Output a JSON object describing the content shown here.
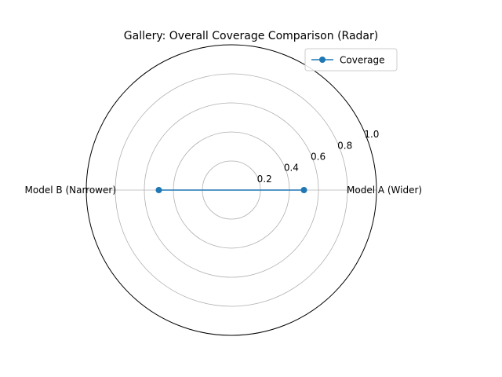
{
  "chart_data": {
    "type": "radar",
    "title": "Gallery: Overall Coverage Comparison (Radar)",
    "categories": [
      "Model A (Wider)",
      "Model B (Narrower)"
    ],
    "series": [
      {
        "name": "Coverage",
        "values": [
          0.5,
          0.5
        ],
        "color": "#1f77b4"
      }
    ],
    "rlim": [
      0,
      1.0
    ],
    "r_ticks": [
      0.2,
      0.4,
      0.6,
      0.8,
      1.0
    ],
    "r_tick_labels": [
      "0.2",
      "0.4",
      "0.6",
      "0.8",
      "1.0"
    ],
    "legend": {
      "location": "top-right",
      "entries": [
        "Coverage"
      ]
    },
    "grid": true
  }
}
